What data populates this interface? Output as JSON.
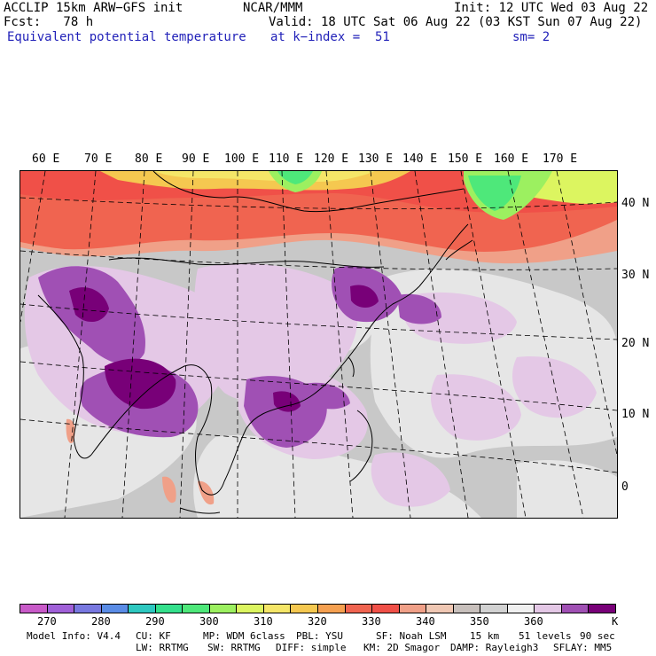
{
  "header": {
    "model": "ACCLIP 15km ARW−GFS init",
    "org": "NCAR/MMM",
    "init": "Init: 12 UTC Wed 03 Aug 22",
    "fcst": "Fcst:   78 h",
    "valid": "Valid: 18 UTC Sat 06 Aug 22 (03 KST Sun 07 Aug 22)",
    "field": "Equivalent potential temperature",
    "level": "at k−index =  51",
    "smooth": "sm= 2"
  },
  "map": {
    "lon_labels": [
      "60 E",
      "70 E",
      "80 E",
      "90 E",
      "100 E",
      "110 E",
      "120 E",
      "130 E",
      "140 E",
      "150 E",
      "160 E",
      "170 E"
    ],
    "lat_labels": [
      "40 N",
      "30 N",
      "20 N",
      "10 N",
      "0"
    ]
  },
  "colorbar": {
    "colors": [
      "#c85ac8",
      "#a060d8",
      "#7878e0",
      "#5a8ce6",
      "#2ec8c0",
      "#34e08c",
      "#4ee87a",
      "#9cf060",
      "#dcf560",
      "#f5e668",
      "#f5c850",
      "#f5a050",
      "#f06450",
      "#f05048",
      "#f0a088",
      "#f0c8b4",
      "#c8c0bc",
      "#d2d2d2",
      "#f0f0f0",
      "#e4c8e6",
      "#a050b4",
      "#780078"
    ],
    "labels": [
      "270",
      "280",
      "290",
      "300",
      "310",
      "320",
      "330",
      "340",
      "350",
      "360"
    ],
    "unit": "K"
  },
  "footer": {
    "line1": [
      "Model Info: V4.4",
      "CU: KF",
      "MP: WDM 6class",
      "PBL: YSU",
      "SF: Noah LSM",
      "15 km",
      "51 levels",
      "90 sec"
    ],
    "line2": [
      "LW: RRTMG",
      "SW: RRTMG",
      "DIFF: simple",
      "KM: 2D Smagor",
      "DAMP: Rayleigh3",
      "SFLAY: MM5"
    ]
  }
}
